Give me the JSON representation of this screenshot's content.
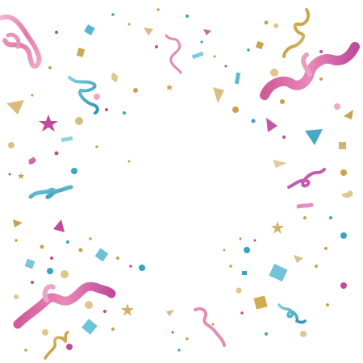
{
  "image": {
    "subject": "confetti-border",
    "background": "#ffffff",
    "colors": {
      "pink": "#e07aa6",
      "pink_light": "#f2a8c8",
      "magenta": "#c04a9c",
      "violet": "#b86ac8",
      "teal": "#3aa3bf",
      "teal_light": "#6cc6d9",
      "gold": "#c9a24a",
      "gold_light": "#e0c68a",
      "gold_pale": "#e9d9ae"
    }
  }
}
